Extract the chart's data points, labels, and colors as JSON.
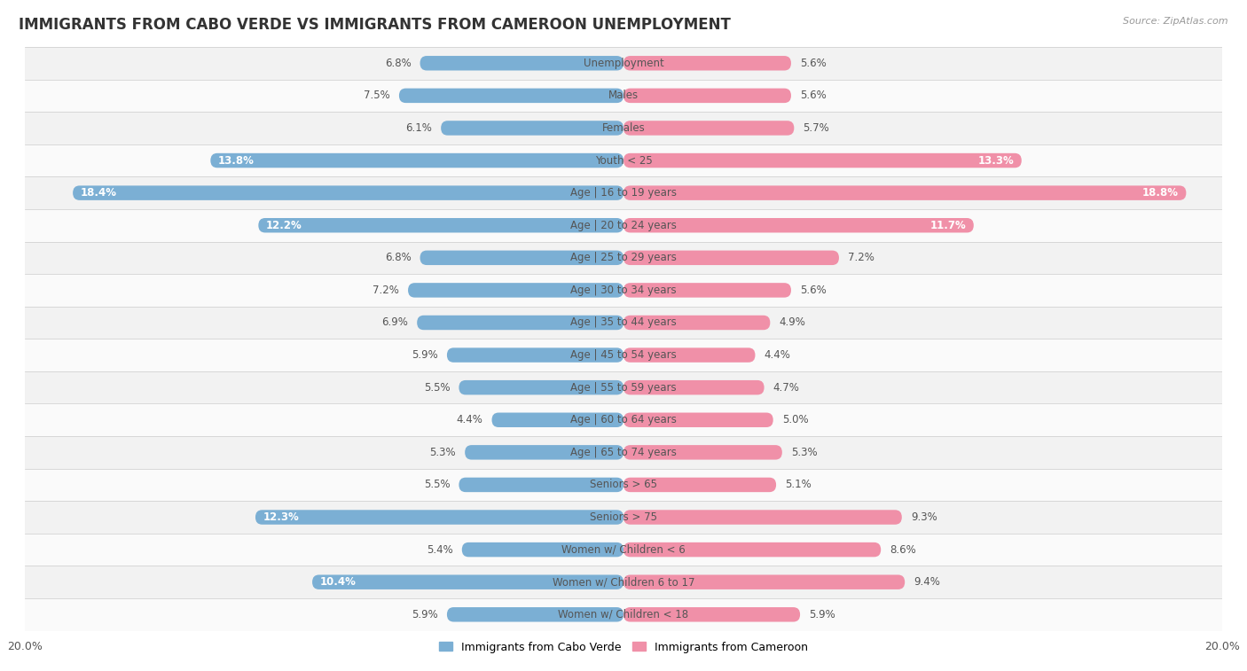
{
  "title": "IMMIGRANTS FROM CABO VERDE VS IMMIGRANTS FROM CAMEROON UNEMPLOYMENT",
  "source": "Source: ZipAtlas.com",
  "categories": [
    "Unemployment",
    "Males",
    "Females",
    "Youth < 25",
    "Age | 16 to 19 years",
    "Age | 20 to 24 years",
    "Age | 25 to 29 years",
    "Age | 30 to 34 years",
    "Age | 35 to 44 years",
    "Age | 45 to 54 years",
    "Age | 55 to 59 years",
    "Age | 60 to 64 years",
    "Age | 65 to 74 years",
    "Seniors > 65",
    "Seniors > 75",
    "Women w/ Children < 6",
    "Women w/ Children 6 to 17",
    "Women w/ Children < 18"
  ],
  "cabo_verde": [
    6.8,
    7.5,
    6.1,
    13.8,
    18.4,
    12.2,
    6.8,
    7.2,
    6.9,
    5.9,
    5.5,
    4.4,
    5.3,
    5.5,
    12.3,
    5.4,
    10.4,
    5.9
  ],
  "cameroon": [
    5.6,
    5.6,
    5.7,
    13.3,
    18.8,
    11.7,
    7.2,
    5.6,
    4.9,
    4.4,
    4.7,
    5.0,
    5.3,
    5.1,
    9.3,
    8.6,
    9.4,
    5.9
  ],
  "cabo_verde_color": "#7BAFD4",
  "cameroon_color": "#F090A8",
  "xlim": 20.0,
  "bar_height": 0.45,
  "title_fontsize": 12,
  "label_fontsize": 8.5,
  "value_fontsize": 8.5,
  "tick_fontsize": 9,
  "legend_fontsize": 9,
  "source_fontsize": 8
}
